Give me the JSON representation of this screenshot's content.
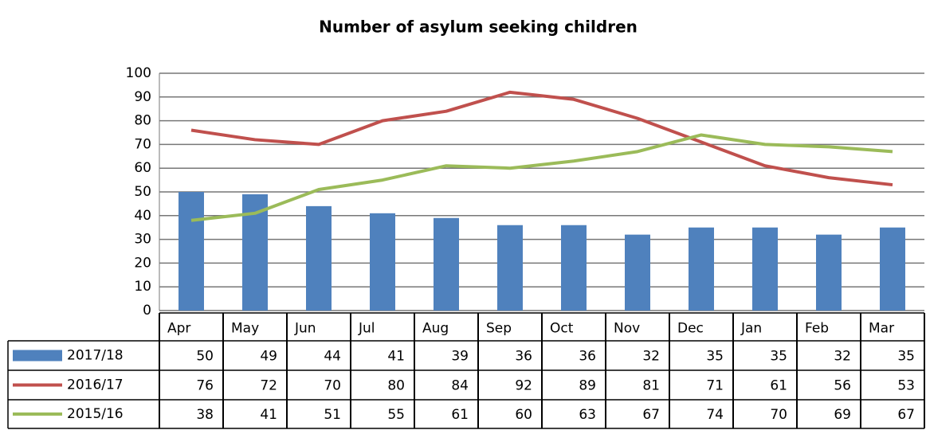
{
  "chart_data": {
    "type": "bar",
    "title": "Number of asylum seeking children",
    "categories": [
      "Apr",
      "May",
      "Jun",
      "Jul",
      "Aug",
      "Sep",
      "Oct",
      "Nov",
      "Dec",
      "Jan",
      "Feb",
      "Mar"
    ],
    "series": [
      {
        "name": "2017/18",
        "type": "bar",
        "color": "#4f81bd",
        "values": [
          50,
          49,
          44,
          41,
          39,
          36,
          36,
          32,
          35,
          35,
          32,
          35
        ]
      },
      {
        "name": "2016/17",
        "type": "line",
        "color": "#c0504d",
        "values": [
          76,
          72,
          70,
          80,
          84,
          92,
          89,
          81,
          71,
          61,
          56,
          53
        ]
      },
      {
        "name": "2015/16",
        "type": "line",
        "color": "#9bbb59",
        "values": [
          38,
          41,
          51,
          55,
          61,
          60,
          63,
          67,
          74,
          70,
          69,
          67
        ]
      }
    ],
    "ylim": [
      0,
      100
    ],
    "yticks": [
      0,
      10,
      20,
      30,
      40,
      50,
      60,
      70,
      80,
      90,
      100
    ],
    "grid": true
  }
}
